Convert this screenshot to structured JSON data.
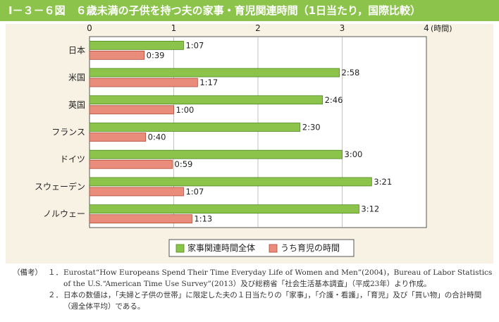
{
  "title": "Ⅰ－３－６図　６歳未満の子供を持つ夫の家事・育児関連時間（1日当たり，国際比較）",
  "colors": {
    "title_bg": "#8cc34a",
    "panel_bg": "#f7f2e3",
    "housework_bar": "#8cc34a",
    "childcare_bar": "#e98c7b"
  },
  "chart_data": {
    "type": "bar",
    "orientation": "horizontal",
    "categories": [
      "日本",
      "米国",
      "英国",
      "フランス",
      "ドイツ",
      "スウェーデン",
      "ノルウェー"
    ],
    "series": [
      {
        "name": "家事関連時間全体",
        "values": [
          1.1167,
          2.9667,
          2.7667,
          2.5,
          3.0,
          3.35,
          3.2
        ],
        "labels": [
          "1:07",
          "2:58",
          "2:46",
          "2:30",
          "3:00",
          "3:21",
          "3:12"
        ]
      },
      {
        "name": "うち育児の時間",
        "values": [
          0.65,
          1.2833,
          1.0,
          0.6667,
          0.9833,
          1.1167,
          1.2167
        ],
        "labels": [
          "0:39",
          "1:17",
          "1:00",
          "0:40",
          "0:59",
          "1:07",
          "1:13"
        ]
      }
    ],
    "xlim": [
      0,
      4
    ],
    "x_ticks": [
      "0",
      "1",
      "2",
      "3",
      "4"
    ],
    "x_unit": "(時間)",
    "legend_position": "bottom-center"
  },
  "notes": {
    "head": "（備考）",
    "items": [
      {
        "num": "１．",
        "text": "Eurostat“How Europeans Spend Their Time Everyday Life of Women and Men”(2004)，Bureau of Labor Statistics of the U.S.“American Time Use Survey”(2013）及び総務省「社会生活基本調査」（平成23年）より作成。"
      },
      {
        "num": "２．",
        "text": "日本の数値は，「夫婦と子供の世帯」に限定した夫の１日当たりの「家事」，「介護・看護」，「育児」及び「買い物」の合計時間（週全体平均）である。"
      }
    ]
  }
}
